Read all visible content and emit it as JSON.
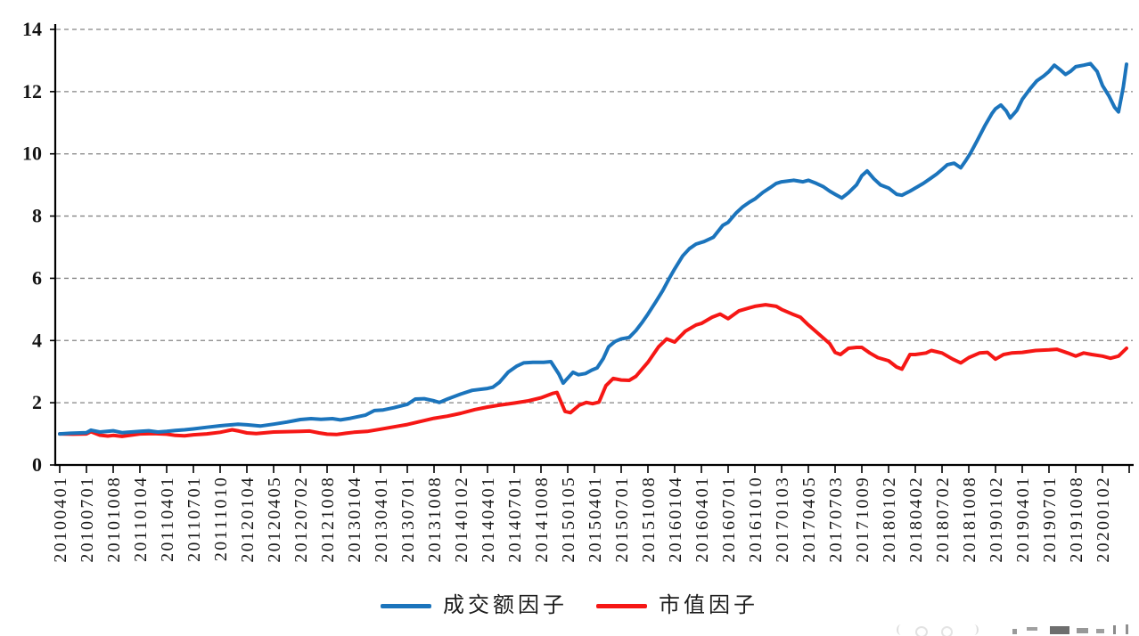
{
  "chart_data": {
    "type": "line",
    "title": "",
    "grid": "horizontal dashed gridlines at every y tick",
    "legend_position": "bottom-center",
    "y_axis": {
      "min": 0,
      "max": 14,
      "tick_labels": [
        "0",
        "2",
        "4",
        "6",
        "8",
        "10",
        "12",
        "14"
      ]
    },
    "x_axis": {
      "tick_labels": [
        "20100401",
        "20100701",
        "20101008",
        "20110104",
        "20110401",
        "20110701",
        "20111010",
        "20120104",
        "20120405",
        "20120702",
        "20121008",
        "20130104",
        "20130401",
        "20130701",
        "20131008",
        "20140102",
        "20140401",
        "20140701",
        "20141008",
        "20150105",
        "20150401",
        "20150701",
        "20151008",
        "20160104",
        "20160401",
        "20160701",
        "20161010",
        "20170103",
        "20170405",
        "20170703",
        "20171009",
        "20180102",
        "20180402",
        "20180702",
        "20181008",
        "20190102",
        "20190401",
        "20190701",
        "20191008",
        "20200102"
      ],
      "label_rotation_degrees": 90
    },
    "x_encoding": "points are [t, value] where t is a fractional index into x_axis.tick_labels (quarterly ticks)",
    "axis_color": "#000000",
    "gridline_color": "#848484",
    "series": [
      {
        "name": "成交额因子",
        "color": "#1b74bc",
        "points": [
          [
            0,
            1.0
          ],
          [
            0.4,
            1.02
          ],
          [
            1,
            1.04
          ],
          [
            1.17,
            1.12
          ],
          [
            1.5,
            1.06
          ],
          [
            2,
            1.1
          ],
          [
            2.33,
            1.04
          ],
          [
            3,
            1.08
          ],
          [
            3.33,
            1.1
          ],
          [
            3.67,
            1.06
          ],
          [
            4,
            1.08
          ],
          [
            4.33,
            1.11
          ],
          [
            4.67,
            1.13
          ],
          [
            5,
            1.16
          ],
          [
            5.5,
            1.21
          ],
          [
            6,
            1.26
          ],
          [
            6.67,
            1.31
          ],
          [
            7,
            1.29
          ],
          [
            7.5,
            1.25
          ],
          [
            8,
            1.31
          ],
          [
            8.5,
            1.38
          ],
          [
            8.8,
            1.43
          ],
          [
            9,
            1.46
          ],
          [
            9.4,
            1.49
          ],
          [
            9.77,
            1.47
          ],
          [
            10.2,
            1.49
          ],
          [
            10.5,
            1.45
          ],
          [
            10.87,
            1.5
          ],
          [
            11.43,
            1.6
          ],
          [
            11.77,
            1.75
          ],
          [
            12.1,
            1.77
          ],
          [
            12.5,
            1.84
          ],
          [
            13,
            1.95
          ],
          [
            13.3,
            2.12
          ],
          [
            13.63,
            2.13
          ],
          [
            14,
            2.06
          ],
          [
            14.2,
            2.01
          ],
          [
            14.5,
            2.12
          ],
          [
            15,
            2.28
          ],
          [
            15.43,
            2.4
          ],
          [
            16,
            2.46
          ],
          [
            16.2,
            2.5
          ],
          [
            16.45,
            2.66
          ],
          [
            16.77,
            2.98
          ],
          [
            17.1,
            3.18
          ],
          [
            17.35,
            3.28
          ],
          [
            17.7,
            3.3
          ],
          [
            18.1,
            3.3
          ],
          [
            18.37,
            3.32
          ],
          [
            18.67,
            2.92
          ],
          [
            18.83,
            2.63
          ],
          [
            19.2,
            2.98
          ],
          [
            19.4,
            2.9
          ],
          [
            19.67,
            2.94
          ],
          [
            19.9,
            3.05
          ],
          [
            20.1,
            3.12
          ],
          [
            20.33,
            3.42
          ],
          [
            20.53,
            3.8
          ],
          [
            20.77,
            3.97
          ],
          [
            21,
            4.05
          ],
          [
            21.3,
            4.1
          ],
          [
            21.55,
            4.32
          ],
          [
            21.8,
            4.6
          ],
          [
            22,
            4.85
          ],
          [
            22.3,
            5.25
          ],
          [
            22.55,
            5.6
          ],
          [
            22.8,
            6.0
          ],
          [
            23,
            6.3
          ],
          [
            23.3,
            6.72
          ],
          [
            23.55,
            6.95
          ],
          [
            23.8,
            7.1
          ],
          [
            24.1,
            7.18
          ],
          [
            24.45,
            7.32
          ],
          [
            24.8,
            7.7
          ],
          [
            25,
            7.8
          ],
          [
            25.3,
            8.1
          ],
          [
            25.55,
            8.3
          ],
          [
            25.8,
            8.45
          ],
          [
            26,
            8.55
          ],
          [
            26.3,
            8.76
          ],
          [
            26.55,
            8.9
          ],
          [
            26.8,
            9.05
          ],
          [
            27,
            9.1
          ],
          [
            27.45,
            9.15
          ],
          [
            27.8,
            9.1
          ],
          [
            28,
            9.15
          ],
          [
            28.3,
            9.05
          ],
          [
            28.55,
            8.95
          ],
          [
            28.8,
            8.8
          ],
          [
            29,
            8.7
          ],
          [
            29.25,
            8.58
          ],
          [
            29.5,
            8.75
          ],
          [
            29.8,
            9.0
          ],
          [
            30,
            9.3
          ],
          [
            30.2,
            9.45
          ],
          [
            30.45,
            9.2
          ],
          [
            30.7,
            9.0
          ],
          [
            31,
            8.9
          ],
          [
            31.3,
            8.7
          ],
          [
            31.5,
            8.67
          ],
          [
            31.8,
            8.8
          ],
          [
            32,
            8.9
          ],
          [
            32.3,
            9.05
          ],
          [
            32.55,
            9.2
          ],
          [
            32.8,
            9.35
          ],
          [
            33,
            9.5
          ],
          [
            33.2,
            9.65
          ],
          [
            33.45,
            9.7
          ],
          [
            33.7,
            9.55
          ],
          [
            33.9,
            9.8
          ],
          [
            34.05,
            10.0
          ],
          [
            34.3,
            10.4
          ],
          [
            34.6,
            10.9
          ],
          [
            34.87,
            11.3
          ],
          [
            35,
            11.45
          ],
          [
            35.2,
            11.57
          ],
          [
            35.4,
            11.38
          ],
          [
            35.55,
            11.15
          ],
          [
            35.8,
            11.4
          ],
          [
            36,
            11.75
          ],
          [
            36.3,
            12.1
          ],
          [
            36.55,
            12.35
          ],
          [
            36.8,
            12.5
          ],
          [
            37,
            12.65
          ],
          [
            37.2,
            12.85
          ],
          [
            37.45,
            12.68
          ],
          [
            37.62,
            12.55
          ],
          [
            37.8,
            12.65
          ],
          [
            38,
            12.8
          ],
          [
            38.3,
            12.85
          ],
          [
            38.55,
            12.9
          ],
          [
            38.8,
            12.65
          ],
          [
            39,
            12.2
          ],
          [
            39.25,
            11.85
          ],
          [
            39.45,
            11.5
          ],
          [
            39.6,
            11.35
          ],
          [
            39.78,
            12.15
          ],
          [
            39.9,
            12.88
          ]
        ]
      },
      {
        "name": "市值因子",
        "color": "#f61715",
        "points": [
          [
            0,
            1.0
          ],
          [
            0.5,
            0.99
          ],
          [
            1,
            1.0
          ],
          [
            1.17,
            1.07
          ],
          [
            1.5,
            0.96
          ],
          [
            1.8,
            0.93
          ],
          [
            2,
            0.95
          ],
          [
            2.33,
            0.92
          ],
          [
            3,
            1.0
          ],
          [
            3.5,
            1.01
          ],
          [
            4,
            0.99
          ],
          [
            4.33,
            0.95
          ],
          [
            4.67,
            0.94
          ],
          [
            5,
            0.97
          ],
          [
            5.5,
            1.0
          ],
          [
            6,
            1.05
          ],
          [
            6.45,
            1.13
          ],
          [
            6.7,
            1.09
          ],
          [
            7,
            1.03
          ],
          [
            7.35,
            1.01
          ],
          [
            8,
            1.06
          ],
          [
            8.5,
            1.07
          ],
          [
            9,
            1.08
          ],
          [
            9.35,
            1.09
          ],
          [
            9.7,
            1.03
          ],
          [
            10,
            0.99
          ],
          [
            10.35,
            0.98
          ],
          [
            10.7,
            1.02
          ],
          [
            11,
            1.05
          ],
          [
            11.5,
            1.08
          ],
          [
            12,
            1.15
          ],
          [
            12.67,
            1.25
          ],
          [
            13,
            1.3
          ],
          [
            13.5,
            1.4
          ],
          [
            14,
            1.5
          ],
          [
            14.5,
            1.57
          ],
          [
            15,
            1.66
          ],
          [
            15.53,
            1.78
          ],
          [
            16,
            1.86
          ],
          [
            16.43,
            1.92
          ],
          [
            17,
            1.99
          ],
          [
            17.53,
            2.06
          ],
          [
            18,
            2.16
          ],
          [
            18.43,
            2.3
          ],
          [
            18.6,
            2.33
          ],
          [
            18.9,
            1.72
          ],
          [
            19.1,
            1.68
          ],
          [
            19.43,
            1.92
          ],
          [
            19.7,
            2.01
          ],
          [
            19.93,
            1.97
          ],
          [
            20.17,
            2.02
          ],
          [
            20.43,
            2.55
          ],
          [
            20.7,
            2.78
          ],
          [
            21,
            2.73
          ],
          [
            21.3,
            2.72
          ],
          [
            21.55,
            2.85
          ],
          [
            21.8,
            3.1
          ],
          [
            22,
            3.3
          ],
          [
            22.4,
            3.8
          ],
          [
            22.7,
            4.05
          ],
          [
            23,
            3.95
          ],
          [
            23.4,
            4.3
          ],
          [
            23.8,
            4.5
          ],
          [
            24,
            4.55
          ],
          [
            24.4,
            4.75
          ],
          [
            24.7,
            4.85
          ],
          [
            25,
            4.7
          ],
          [
            25.4,
            4.95
          ],
          [
            25.8,
            5.05
          ],
          [
            26,
            5.1
          ],
          [
            26.4,
            5.15
          ],
          [
            26.8,
            5.1
          ],
          [
            27,
            5.0
          ],
          [
            27.4,
            4.85
          ],
          [
            27.7,
            4.75
          ],
          [
            28,
            4.5
          ],
          [
            28.4,
            4.2
          ],
          [
            28.8,
            3.9
          ],
          [
            29,
            3.62
          ],
          [
            29.2,
            3.55
          ],
          [
            29.5,
            3.75
          ],
          [
            29.8,
            3.78
          ],
          [
            30,
            3.78
          ],
          [
            30.3,
            3.6
          ],
          [
            30.6,
            3.45
          ],
          [
            31,
            3.35
          ],
          [
            31.3,
            3.15
          ],
          [
            31.5,
            3.08
          ],
          [
            31.8,
            3.55
          ],
          [
            32,
            3.55
          ],
          [
            32.4,
            3.6
          ],
          [
            32.6,
            3.68
          ],
          [
            33,
            3.6
          ],
          [
            33.4,
            3.4
          ],
          [
            33.7,
            3.28
          ],
          [
            34,
            3.45
          ],
          [
            34.4,
            3.6
          ],
          [
            34.7,
            3.62
          ],
          [
            35,
            3.4
          ],
          [
            35.3,
            3.55
          ],
          [
            35.6,
            3.6
          ],
          [
            36,
            3.62
          ],
          [
            36.5,
            3.68
          ],
          [
            37,
            3.7
          ],
          [
            37.3,
            3.72
          ],
          [
            37.7,
            3.6
          ],
          [
            38,
            3.5
          ],
          [
            38.3,
            3.6
          ],
          [
            38.6,
            3.55
          ],
          [
            39,
            3.5
          ],
          [
            39.3,
            3.43
          ],
          [
            39.6,
            3.5
          ],
          [
            39.9,
            3.75
          ]
        ]
      }
    ]
  }
}
